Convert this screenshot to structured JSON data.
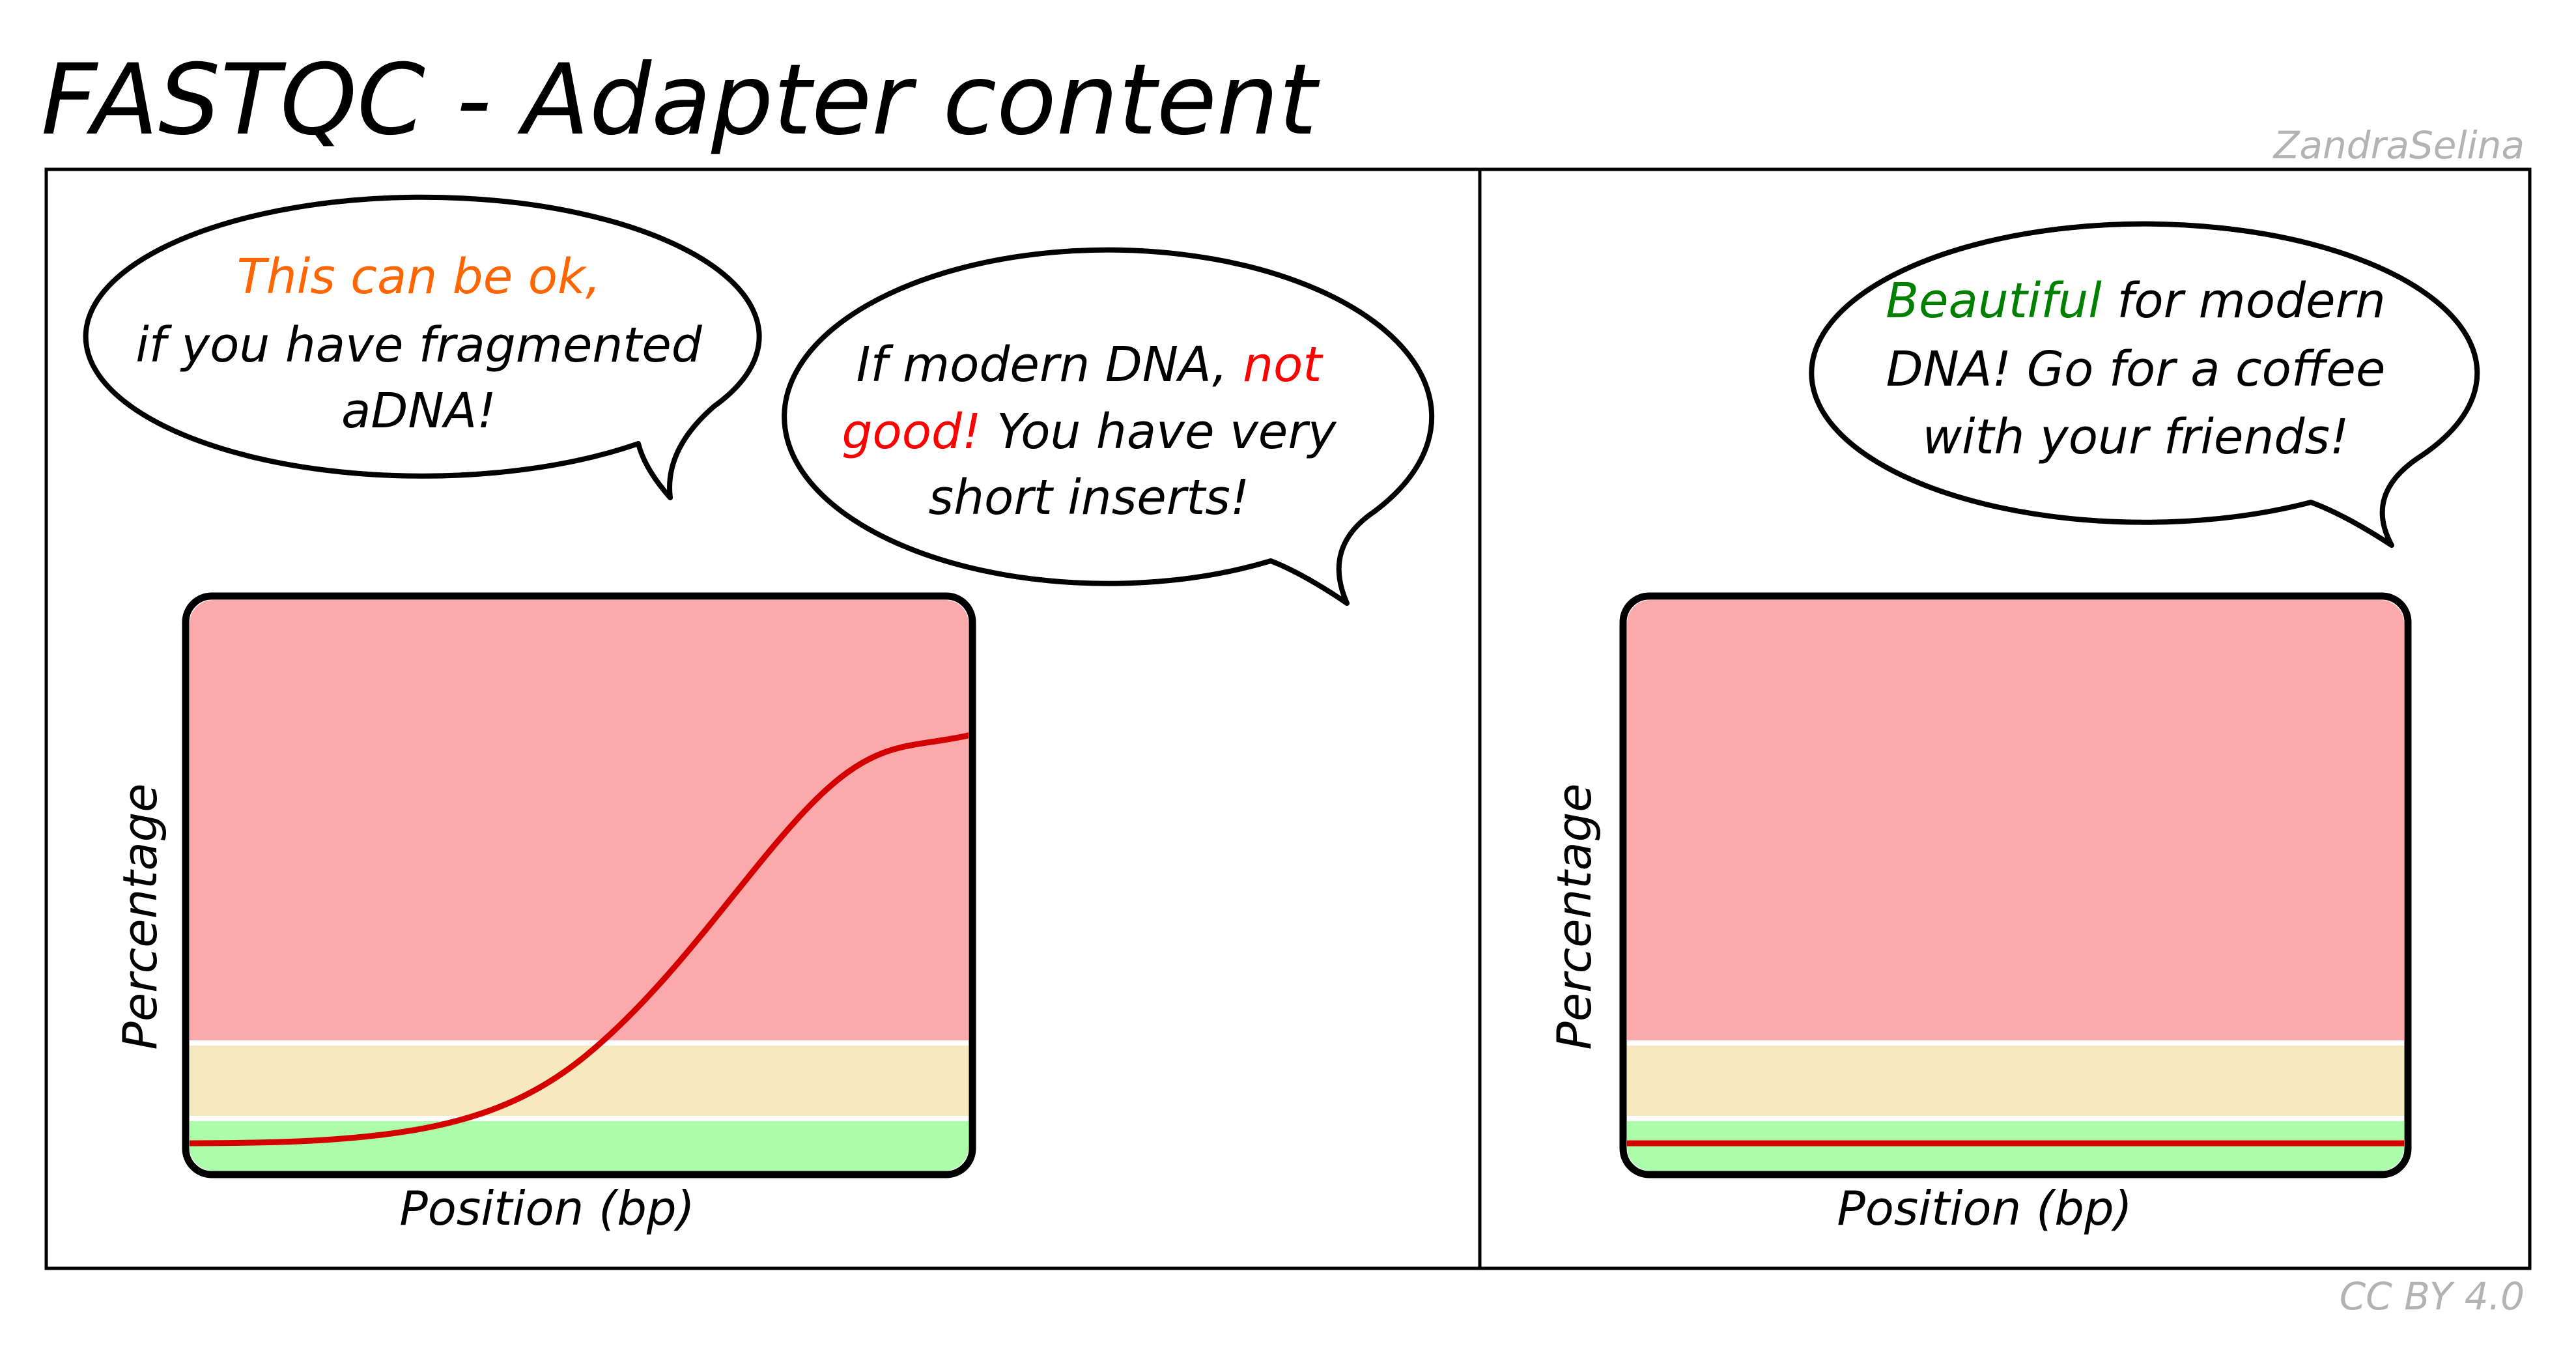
{
  "title": "FASTQC - Adapter content",
  "author_watermark": "ZandraSelina",
  "license": "CC BY 4.0",
  "colors": {
    "fail_zone": "#fca9ab",
    "warn_zone": "#f7e9bf",
    "pass_zone": "#abfdaa",
    "adapter_line": "#d40000",
    "highlight_orange": "#ff6600",
    "highlight_red": "#ff0000",
    "highlight_green": "#008000"
  },
  "panels": [
    {
      "axis_y": "Percentage",
      "axis_x": "Position (bp)",
      "curve": "sigmoid rising from pass zone into fail zone",
      "bubbles": [
        {
          "line1_highlight": "This can be ok,",
          "line2": "if you have fragmented",
          "line3": "aDNA!"
        },
        {
          "line1": "If modern DNA, ",
          "line1_highlight": "not",
          "line2_highlight": "good!",
          "line2": " You have very",
          "line3": "short inserts!"
        }
      ]
    },
    {
      "axis_y": "Percentage",
      "axis_x": "Position (bp)",
      "curve": "flat line in pass zone",
      "bubbles": [
        {
          "line1_highlight": "Beautiful",
          "line1": " for modern",
          "line2": "DNA! Go for a coffee",
          "line3": "with your friends!"
        }
      ]
    }
  ]
}
